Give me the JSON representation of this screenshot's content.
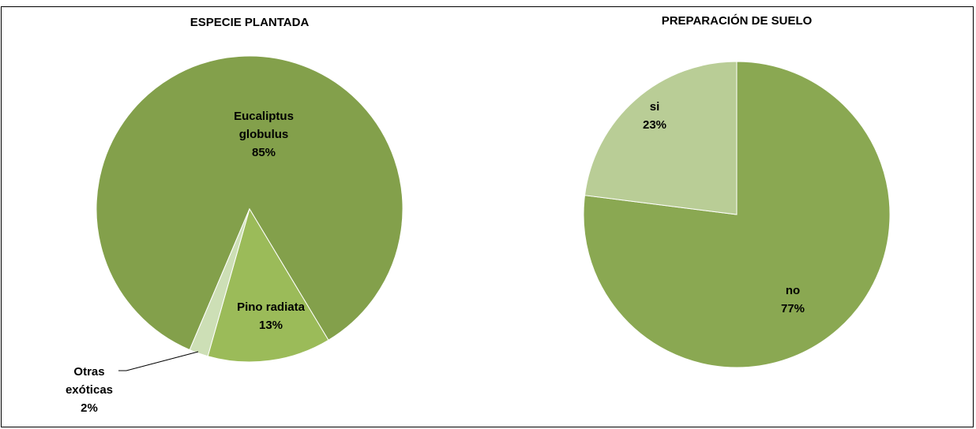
{
  "chart_data": [
    {
      "type": "pie",
      "title": "ESPECIE PLANTADA",
      "categories": [
        "Eucaliptus globulus",
        "Pino radiata",
        "Otras exóticas"
      ],
      "values": [
        85,
        13,
        2
      ],
      "value_labels": [
        "85%",
        "13%",
        "2%"
      ],
      "colors": [
        "#83a04b",
        "#9bbb59",
        "#cddfb6"
      ]
    },
    {
      "type": "pie",
      "title": "PREPARACIÓN DE SUELO",
      "categories": [
        "no",
        "si"
      ],
      "values": [
        77,
        23
      ],
      "value_labels": [
        "77%",
        "23%"
      ],
      "colors": [
        "#8aa852",
        "#b9cd96"
      ]
    }
  ]
}
